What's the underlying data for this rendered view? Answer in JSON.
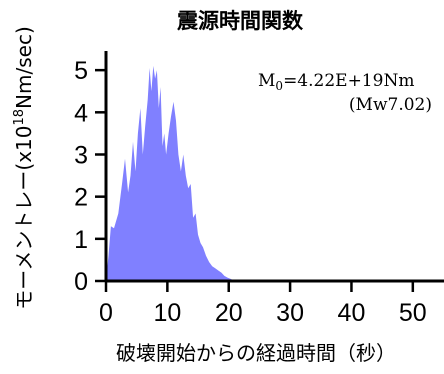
{
  "chart_data": {
    "type": "area",
    "title": "震源時間関数",
    "xlabel": "破壊開始からの経過時間（秒）",
    "ylabel_prefix": "モーメントレー(x10",
    "ylabel_exp": "18",
    "ylabel_suffix": "Nm/sec)",
    "xlim": [
      0,
      55
    ],
    "ylim": [
      0,
      5.3
    ],
    "xticks": [
      0,
      10,
      20,
      30,
      40,
      50
    ],
    "yticks": [
      0,
      1,
      2,
      3,
      4,
      5
    ],
    "fill_color": "#8080ff",
    "annotation": {
      "line1_prefix": "M",
      "line1_sub": "0",
      "line1_rest": "=4.22E+19Nm",
      "line2": "(Mw7.02)"
    },
    "series": [
      {
        "x": [
          0,
          0.4,
          0.8,
          1.3,
          2.0,
          2.6,
          3.1,
          3.6,
          4.0,
          4.4,
          4.8,
          5.2,
          5.6,
          6.0,
          6.4,
          6.8,
          7.1,
          7.4,
          7.7,
          8.0,
          8.3,
          8.6,
          8.9,
          9.2,
          9.5,
          9.8,
          10.2,
          10.6,
          11.0,
          11.4,
          11.8,
          12.2,
          12.6,
          13.0,
          13.4,
          13.8,
          14.2,
          14.6,
          15.0,
          15.4,
          15.8,
          16.3,
          16.8,
          17.3,
          17.8,
          18.3,
          18.8,
          19.3,
          19.8,
          20.3,
          20.8,
          21.2
        ],
        "values": [
          0,
          0.6,
          1.3,
          1.25,
          1.6,
          2.3,
          2.9,
          2.1,
          2.5,
          3.3,
          2.6,
          3.5,
          4.1,
          3.0,
          3.7,
          4.3,
          5.05,
          4.5,
          5.1,
          4.8,
          5.0,
          4.1,
          4.6,
          3.2,
          3.5,
          3.0,
          3.5,
          3.9,
          4.25,
          3.8,
          3.0,
          2.6,
          3.0,
          2.5,
          2.2,
          2.3,
          1.5,
          1.6,
          1.1,
          0.9,
          0.8,
          0.6,
          0.45,
          0.35,
          0.3,
          0.25,
          0.2,
          0.12,
          0.08,
          0.05,
          0.02,
          0
        ]
      }
    ]
  }
}
